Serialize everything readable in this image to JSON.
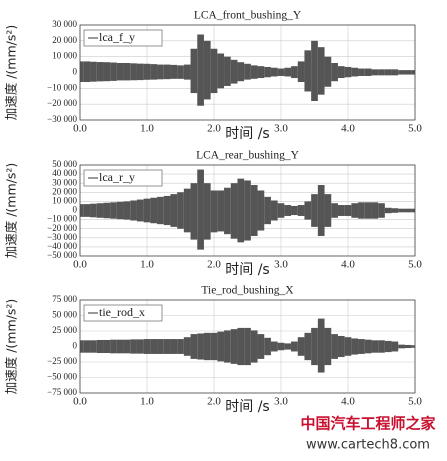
{
  "chart_data": [
    {
      "type": "band",
      "title": "LCA_front_bushing_Y",
      "x_label": "时间 /s",
      "y_label": "加速度 /(mm/s²)",
      "x": [
        0,
        0.1,
        0.2,
        0.3,
        0.4,
        0.5,
        0.6,
        0.7,
        0.8,
        0.9,
        1,
        1.1,
        1.2,
        1.3,
        1.4,
        1.5,
        1.6,
        1.7,
        1.8,
        1.9,
        2,
        2.1,
        2.2,
        2.3,
        2.4,
        2.5,
        2.6,
        2.7,
        2.8,
        2.9,
        3,
        3.1,
        3.2,
        3.3,
        3.4,
        3.5,
        3.6,
        3.7,
        3.8,
        3.9,
        4,
        4.1,
        4.2,
        4.3,
        4.4,
        4.5,
        4.6,
        4.7,
        4.8,
        4.9,
        5
      ],
      "series": [
        {
          "name": "lca_f_y",
          "color": "#555555",
          "values": [
            7000,
            7000,
            6800,
            6600,
            6500,
            6300,
            6000,
            6000,
            5800,
            5600,
            5500,
            5300,
            5000,
            5000,
            4800,
            4500,
            5000,
            15000,
            24000,
            20000,
            15000,
            12000,
            10000,
            8000,
            6500,
            5500,
            4500,
            4000,
            3500,
            3000,
            2500,
            3000,
            4000,
            7000,
            14000,
            20000,
            16000,
            10000,
            6000,
            4000,
            3500,
            3000,
            2500,
            2500,
            2000,
            2000,
            2000,
            2000,
            1500,
            1500,
            1500
          ],
          "lower": [
            -6000,
            -6000,
            -5800,
            -5600,
            -5500,
            -5300,
            -5000,
            -5000,
            -4900,
            -4800,
            -4600,
            -4500,
            -4300,
            -4200,
            -4000,
            -4000,
            -4500,
            -13000,
            -21000,
            -17000,
            -13000,
            -10000,
            -8500,
            -7000,
            -5500,
            -4500,
            -4000,
            -3500,
            -3000,
            -2500,
            -2200,
            -2500,
            -3500,
            -6000,
            -12000,
            -18000,
            -14000,
            -9000,
            -5500,
            -3500,
            -3000,
            -2500,
            -2200,
            -2200,
            -1800,
            -1800,
            -1800,
            -1800,
            -1300,
            -1300,
            -1300
          ]
        }
      ],
      "xlim": [
        0,
        5
      ],
      "xticks": [
        {
          "value": 0,
          "label": "0.0"
        },
        {
          "value": 1,
          "label": "1.0"
        },
        {
          "value": 2,
          "label": "2.0"
        },
        {
          "value": 3,
          "label": "3.0"
        },
        {
          "value": 4,
          "label": "4.0"
        },
        {
          "value": 5,
          "label": "5.0"
        }
      ],
      "ylim": [
        -30000,
        30000
      ],
      "yticks": [
        {
          "value": -30000,
          "label": "−30 000"
        },
        {
          "value": -20000,
          "label": "−20 000"
        },
        {
          "value": -10000,
          "label": "−10 000"
        },
        0,
        {
          "value": 10000,
          "label": "10 000"
        },
        {
          "value": 20000,
          "label": "20 000"
        },
        {
          "value": 30000,
          "label": "30 000"
        }
      ],
      "grid": true
    },
    {
      "type": "band",
      "title": "LCA_rear_bushing_Y",
      "x_label": "时间 /s",
      "y_label": "加速度 /(mm/s²)",
      "x": [
        0,
        0.1,
        0.2,
        0.3,
        0.4,
        0.5,
        0.6,
        0.7,
        0.8,
        0.9,
        1,
        1.1,
        1.2,
        1.3,
        1.4,
        1.5,
        1.6,
        1.7,
        1.8,
        1.9,
        2,
        2.1,
        2.2,
        2.3,
        2.4,
        2.5,
        2.6,
        2.7,
        2.8,
        2.9,
        3,
        3.1,
        3.2,
        3.3,
        3.4,
        3.5,
        3.6,
        3.7,
        3.8,
        3.9,
        4,
        4.1,
        4.2,
        4.3,
        4.4,
        4.5,
        4.6,
        4.7,
        4.8,
        4.9,
        5
      ],
      "series": [
        {
          "name": "lca_r_y",
          "color": "#555555",
          "values": [
            7000,
            7000,
            7500,
            8000,
            8500,
            9000,
            9500,
            10000,
            11000,
            12000,
            13000,
            14000,
            15000,
            16000,
            18000,
            20000,
            24000,
            30000,
            45000,
            30000,
            22000,
            22000,
            25000,
            30000,
            35000,
            33000,
            28000,
            22000,
            15000,
            11000,
            8000,
            6000,
            5000,
            6000,
            10000,
            18000,
            28000,
            18000,
            8000,
            6000,
            6000,
            8000,
            9000,
            9000,
            9000,
            8000,
            3000,
            2500,
            2000,
            2000,
            2000
          ],
          "lower": [
            -7000,
            -7000,
            -7500,
            -8000,
            -8500,
            -9000,
            -9500,
            -10000,
            -11000,
            -12000,
            -13000,
            -14000,
            -15000,
            -16000,
            -18000,
            -20000,
            -24000,
            -32000,
            -43000,
            -32000,
            -24000,
            -23000,
            -26000,
            -31000,
            -35000,
            -33000,
            -28000,
            -22000,
            -15000,
            -11000,
            -8000,
            -6000,
            -5000,
            -6000,
            -10000,
            -18000,
            -28000,
            -18000,
            -8000,
            -6000,
            -6000,
            -8000,
            -9000,
            -9000,
            -9000,
            -8000,
            -3000,
            -2500,
            -2000,
            -2000,
            -2000
          ]
        }
      ],
      "xlim": [
        0,
        5
      ],
      "xticks": [
        {
          "value": 0,
          "label": "0.0"
        },
        {
          "value": 1,
          "label": "1.0"
        },
        {
          "value": 2,
          "label": "2.0"
        },
        {
          "value": 3,
          "label": "3.0"
        },
        {
          "value": 4,
          "label": "4.0"
        },
        {
          "value": 5,
          "label": "5.0"
        }
      ],
      "ylim": [
        -50000,
        50000
      ],
      "yticks": [
        {
          "value": -50000,
          "label": "−50 000"
        },
        {
          "value": -40000,
          "label": "−40 000"
        },
        {
          "value": -30000,
          "label": "−30 000"
        },
        {
          "value": -20000,
          "label": "−20 000"
        },
        {
          "value": -10000,
          "label": "−10 000"
        },
        0,
        {
          "value": 10000,
          "label": "10 000"
        },
        {
          "value": 20000,
          "label": "20 000"
        },
        {
          "value": 30000,
          "label": "30 000"
        },
        {
          "value": 40000,
          "label": "40 000"
        },
        {
          "value": 50000,
          "label": "50 000"
        }
      ],
      "grid": true
    },
    {
      "type": "band",
      "title": "Tie_rod_bushing_X",
      "x_label": "时间 /s",
      "y_label": "加速度 /(mm/s²)",
      "x": [
        0,
        0.1,
        0.2,
        0.3,
        0.4,
        0.5,
        0.6,
        0.7,
        0.8,
        0.9,
        1,
        1.1,
        1.2,
        1.3,
        1.4,
        1.5,
        1.6,
        1.7,
        1.8,
        1.9,
        2,
        2.1,
        2.2,
        2.3,
        2.4,
        2.5,
        2.6,
        2.7,
        2.8,
        2.9,
        3,
        3.1,
        3.2,
        3.3,
        3.4,
        3.5,
        3.6,
        3.7,
        3.8,
        3.9,
        4,
        4.1,
        4.2,
        4.3,
        4.4,
        4.5,
        4.6,
        4.7,
        4.8,
        4.9,
        5
      ],
      "series": [
        {
          "name": "tie_rod_x",
          "color": "#555555",
          "values": [
            10000,
            10000,
            10000,
            10500,
            10500,
            11000,
            11000,
            11000,
            11500,
            11500,
            12000,
            12000,
            12000,
            12000,
            12000,
            12000,
            15000,
            20000,
            21000,
            22000,
            22000,
            24000,
            26000,
            28000,
            30000,
            30000,
            26000,
            20000,
            14000,
            8000,
            6000,
            5000,
            8000,
            15000,
            22000,
            30000,
            45000,
            30000,
            20000,
            17000,
            15000,
            13000,
            12000,
            11000,
            10000,
            10000,
            9000,
            8000,
            3000,
            2500,
            2000
          ],
          "lower": [
            -10000,
            -10000,
            -10000,
            -10500,
            -10500,
            -11000,
            -11000,
            -11000,
            -11500,
            -11500,
            -12000,
            -12000,
            -12000,
            -12000,
            -12000,
            -12000,
            -15000,
            -20000,
            -21000,
            -22000,
            -22000,
            -24000,
            -26000,
            -28000,
            -30000,
            -30000,
            -26000,
            -20000,
            -14000,
            -8000,
            -6000,
            -5000,
            -8000,
            -15000,
            -22000,
            -30000,
            -42000,
            -30000,
            -20000,
            -17000,
            -15000,
            -13000,
            -12000,
            -11000,
            -10000,
            -10000,
            -9000,
            -8000,
            -3000,
            -2500,
            -2000
          ]
        }
      ],
      "xlim": [
        0,
        5
      ],
      "xticks": [
        {
          "value": 0,
          "label": "0.0"
        },
        {
          "value": 1,
          "label": "1.0"
        },
        {
          "value": 2,
          "label": "2.0"
        },
        {
          "value": 3,
          "label": "3.0"
        },
        {
          "value": 4,
          "label": "4.0"
        },
        {
          "value": 5,
          "label": "5.0"
        }
      ],
      "ylim": [
        -75000,
        75000
      ],
      "yticks": [
        {
          "value": -75000,
          "label": "−75 000"
        },
        {
          "value": -50000,
          "label": "−50 000"
        },
        {
          "value": -25000,
          "label": "−25 000"
        },
        0,
        {
          "value": 25000,
          "label": "25 000"
        },
        {
          "value": 50000,
          "label": "50 000"
        },
        {
          "value": 75000,
          "label": "75 000"
        }
      ],
      "grid": true
    }
  ],
  "watermark": {
    "brand": "中国汽车工程师之家",
    "url": "www.cartech8.com"
  }
}
